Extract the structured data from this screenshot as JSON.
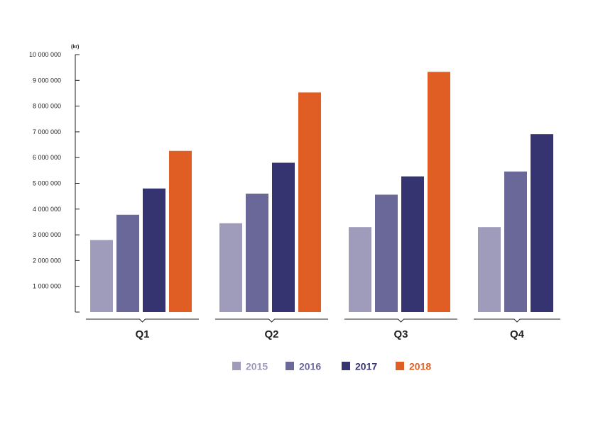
{
  "chart_data": {
    "type": "bar",
    "categories": [
      "Q1",
      "Q2",
      "Q3",
      "Q4"
    ],
    "series": [
      {
        "name": "2015",
        "color": "#9e9bbb",
        "values": [
          2800000,
          3450000,
          3300000,
          3300000
        ]
      },
      {
        "name": "2016",
        "color": "#6a6898",
        "values": [
          3780000,
          4600000,
          4560000,
          5460000
        ]
      },
      {
        "name": "2017",
        "color": "#363470",
        "values": [
          4800000,
          5800000,
          5270000,
          6910000
        ]
      },
      {
        "name": "2018",
        "color": "#e05e24",
        "values": [
          6260000,
          8530000,
          9330000,
          null
        ]
      }
    ],
    "title": "",
    "xlabel": "",
    "ylabel": "(kr)",
    "ylim": [
      0,
      10000000
    ],
    "yticks": [
      1000000,
      2000000,
      3000000,
      4000000,
      5000000,
      6000000,
      7000000,
      8000000,
      9000000,
      10000000
    ],
    "ytick_labels": [
      "1 000 000",
      "2 000 000",
      "3 000 000",
      "4 000 000",
      "5 000 000",
      "6 000 000",
      "7 000 000",
      "8 000 000",
      "9 000 000",
      "10 000 000"
    ],
    "grid": false,
    "legend_position": "bottom-center"
  }
}
